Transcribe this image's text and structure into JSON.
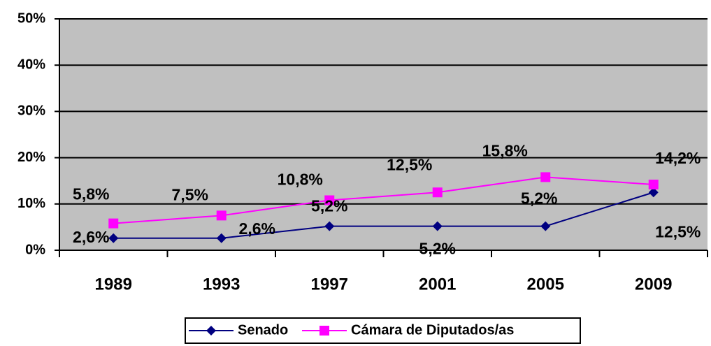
{
  "chart_data": {
    "type": "line",
    "categories": [
      "1989",
      "1993",
      "1997",
      "2001",
      "2005",
      "2009"
    ],
    "series": [
      {
        "name": "Senado",
        "color": "#000080",
        "values": [
          2.6,
          2.6,
          5.2,
          5.2,
          5.2,
          12.5
        ],
        "value_labels": [
          "2,6%",
          "2,6%",
          "5,2%",
          "5,2%",
          "5,2%",
          "12,5%"
        ]
      },
      {
        "name": "Cámara de Diputados/as",
        "color": "#ff00ff",
        "values": [
          5.8,
          7.5,
          10.8,
          12.5,
          15.8,
          14.2
        ],
        "value_labels": [
          "5,8%",
          "7,5%",
          "10,8%",
          "12,5%",
          "15,8%",
          "14,2%"
        ]
      }
    ],
    "ylim": [
      0,
      50
    ],
    "yticks": [
      {
        "value": 0,
        "label": "0%"
      },
      {
        "value": 10,
        "label": "10%"
      },
      {
        "value": 20,
        "label": "20%"
      },
      {
        "value": 30,
        "label": "30%"
      },
      {
        "value": 40,
        "label": "40%"
      },
      {
        "value": 50,
        "label": "50%"
      }
    ],
    "grid": true,
    "legend": "bottom",
    "background": "#c0c0c0"
  }
}
